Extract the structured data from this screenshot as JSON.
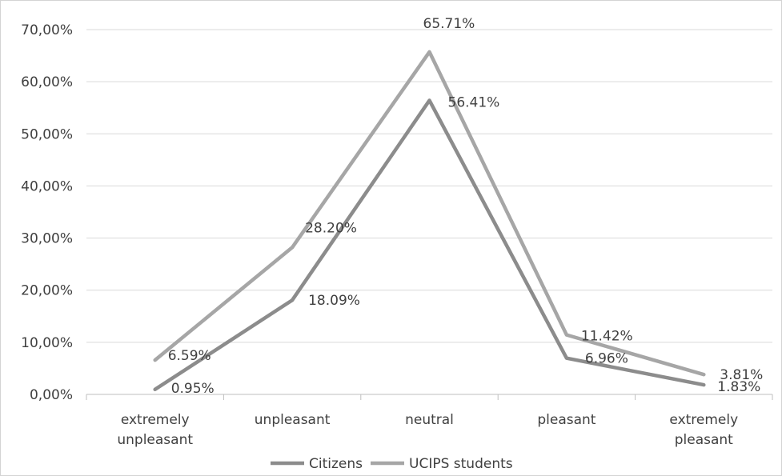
{
  "chart_data": {
    "type": "line",
    "categories": [
      [
        "extremely",
        "unpleasant"
      ],
      [
        "unpleasant"
      ],
      [
        "neutral"
      ],
      [
        "pleasant"
      ],
      [
        "extremely",
        "pleasant"
      ]
    ],
    "series": [
      {
        "name": "Citizens",
        "values": [
          0.95,
          18.09,
          56.41,
          6.96,
          1.83
        ],
        "labels": [
          "0.95%",
          "18.09%",
          "56.41%",
          "6.96%",
          "1.83%"
        ],
        "color": "#8c8c8c"
      },
      {
        "name": "UCIPS students",
        "values": [
          6.59,
          28.2,
          65.71,
          11.42,
          3.81
        ],
        "labels": [
          "6.59%",
          "28.20%",
          "65.71%",
          "11.42%",
          "3.81%"
        ],
        "color": "#a6a6a6"
      }
    ],
    "y_ticks": [
      "0,00%",
      "10,00%",
      "20,00%",
      "30,00%",
      "40,00%",
      "50,00%",
      "60,00%",
      "70,00%"
    ],
    "ylim": [
      0,
      70
    ],
    "grid": true,
    "legend_position": "bottom",
    "title": "",
    "xlabel": "",
    "ylabel": ""
  }
}
